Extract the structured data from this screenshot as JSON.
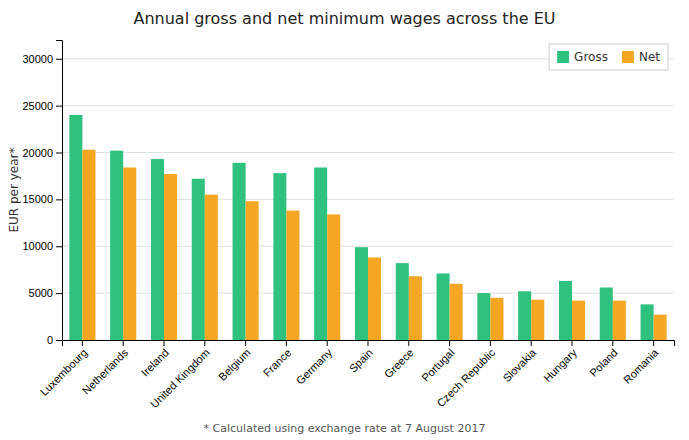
{
  "chart_data": {
    "type": "bar",
    "title": "Annual gross and net minimum wages across the EU",
    "ylabel": "EUR per year*",
    "footnote": "* Calculated using exchange rate at 7 August 2017",
    "categories": [
      "Luxembourg",
      "Netherlands",
      "Ireland",
      "United Kingdom",
      "Belgium",
      "France",
      "Germany",
      "Spain",
      "Greece",
      "Portugal",
      "Czech Republic",
      "Slovakia",
      "Hungary",
      "Poland",
      "Romania"
    ],
    "series": [
      {
        "name": "Gross",
        "color": "#2ec27e",
        "values": [
          24000,
          20200,
          19300,
          17200,
          18900,
          17800,
          18400,
          9900,
          8200,
          7100,
          5000,
          5200,
          6300,
          5600,
          3800
        ]
      },
      {
        "name": "Net",
        "color": "#f5a623",
        "values": [
          20300,
          18400,
          17700,
          15500,
          14800,
          13800,
          13400,
          8800,
          6800,
          6000,
          4500,
          4300,
          4200,
          4200,
          2700
        ]
      }
    ],
    "ylim": [
      0,
      32000
    ],
    "yticks": [
      0,
      5000,
      10000,
      15000,
      20000,
      25000,
      30000
    ],
    "grid": true,
    "legend": "upper right"
  }
}
